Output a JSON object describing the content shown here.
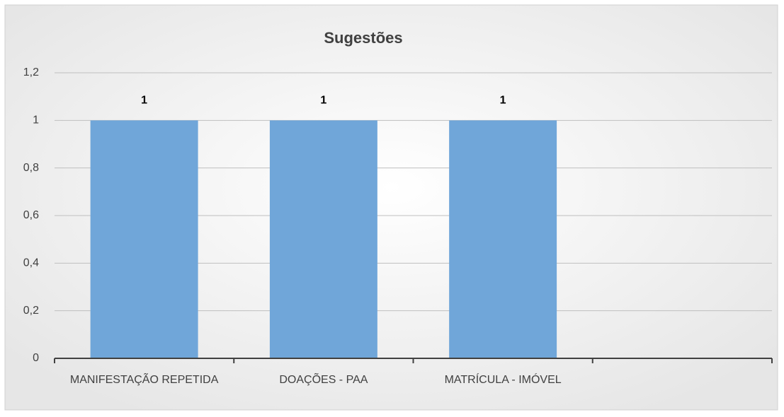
{
  "chart_data": {
    "type": "bar",
    "title": "Sugestões",
    "categories": [
      "MANIFESTAÇÃO REPETIDA",
      "DOAÇÕES - PAA",
      "MATRÍCULA - IMÓVEL",
      null
    ],
    "values": [
      1,
      1,
      1,
      null
    ],
    "color": "#70a6d9",
    "ylim": [
      0,
      1.2
    ],
    "yticks": [
      0,
      {
        "value": 0.2,
        "label": "0,2"
      },
      {
        "value": 0.4,
        "label": "0,4"
      },
      {
        "value": 0.6,
        "label": "0,6"
      },
      {
        "value": 0.8,
        "label": "0,8"
      },
      1,
      {
        "value": 1.2,
        "label": "1,2"
      }
    ],
    "grid": true
  }
}
